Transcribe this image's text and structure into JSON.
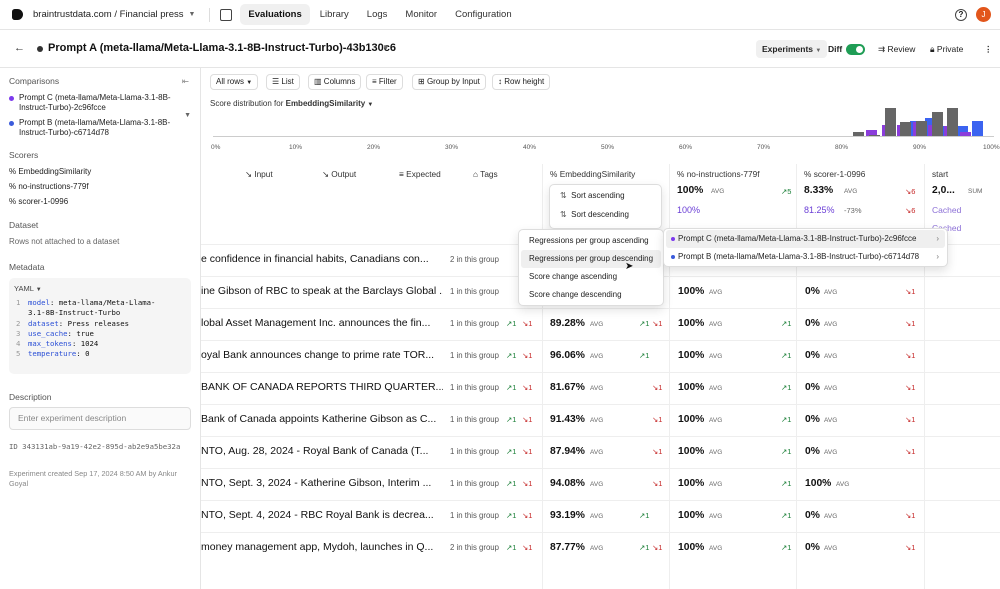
{
  "nav": {
    "org": "braintrustdata.com / Financial press",
    "tabs": [
      "Evaluations",
      "Library",
      "Logs",
      "Monitor",
      "Configuration"
    ],
    "avatar": "J",
    "help": "?"
  },
  "header": {
    "title": "Prompt A (meta-llama/Meta-Llama-3.1-8B-Instruct-Turbo)-43b130c6",
    "experiments": "Experiments",
    "diff": "Diff",
    "review": "Review",
    "private": "Private"
  },
  "sidebar": {
    "comparisons_title": "Comparisons",
    "comparisons": [
      {
        "label": "Prompt C (meta-llama/Meta-Llama-3.1-8B-Instruct-Turbo)-2c96fcce",
        "color": "#7c3aed"
      },
      {
        "label": "Prompt B (meta-llama/Meta-Llama-3.1-8B-Instruct-Turbo)-c6714d78",
        "color": "#3b5bdb"
      }
    ],
    "scorers_title": "Scorers",
    "scorers": [
      "EmbeddingSimilarity",
      "no-instructions-779f",
      "scorer-1-0996"
    ],
    "dataset_title": "Dataset",
    "dataset_text": "Rows not attached to a dataset",
    "metadata_title": "Metadata",
    "yaml_label": "YAML",
    "yaml": [
      {
        "n": "1",
        "k": "model",
        "v": "meta-llama/Meta-Llama-"
      },
      {
        "n": "",
        "k": "",
        "v": "3.1-8B-Instruct-Turbo"
      },
      {
        "n": "2",
        "k": "dataset",
        "v": "Press releases"
      },
      {
        "n": "3",
        "k": "use_cache",
        "v": "true"
      },
      {
        "n": "4",
        "k": "max_tokens",
        "v": "1024"
      },
      {
        "n": "5",
        "k": "temperature",
        "v": "0"
      }
    ],
    "description_title": "Description",
    "description_placeholder": "Enter experiment description",
    "id_text": "ID 343131ab-9a19-42e2-895d-ab2e9a5be32a",
    "created_text": "Experiment created Sep 17, 2024 8:50 AM by Ankur Goyal"
  },
  "toolbar": {
    "all_rows": "All rows",
    "list": "List",
    "columns": "Columns",
    "filter": "Filter",
    "group": "Group by Input",
    "row_height": "Row height"
  },
  "distribution": {
    "label": "Score distribution for",
    "scorer": "EmbeddingSimilarity",
    "ticks": [
      "0%",
      "10%",
      "20%",
      "30%",
      "40%",
      "50%",
      "60%",
      "70%",
      "80%",
      "90%",
      "100%"
    ],
    "bins": [
      {
        "lo": 0.82,
        "g": 0.15,
        "p": 0.2,
        "b": 0
      },
      {
        "lo": 0.84,
        "g": 0.05,
        "p": 0.4,
        "b": 0
      },
      {
        "lo": 0.86,
        "g": 1.0,
        "p": 0.4,
        "b": 0.55
      },
      {
        "lo": 0.88,
        "g": 0.5,
        "p": 0.5,
        "b": 0.65
      },
      {
        "lo": 0.9,
        "g": 0.55,
        "p": 0.4,
        "b": 0.35
      },
      {
        "lo": 0.92,
        "g": 0.85,
        "p": 0.35,
        "b": 0.35
      },
      {
        "lo": 0.94,
        "g": 1.0,
        "p": 0.15,
        "b": 0.55
      }
    ],
    "colors": {
      "g": "#666666",
      "p": "#8b3ddb",
      "b": "#3b63f0"
    }
  },
  "columns": {
    "input": "Input",
    "output": "Output",
    "expected": "Expected",
    "tags": "Tags",
    "embedding": "EmbeddingSimilarity",
    "noinstr": "no-instructions-779f",
    "scorer1": "scorer-1-0996",
    "start": "start"
  },
  "summary": {
    "noinstr": {
      "value": "100%",
      "avg": "AVG",
      "delta": "↗5",
      "c_value": "100%"
    },
    "scorer1": {
      "value": "8.33%",
      "avg": "AVG",
      "delta": "↘6",
      "c_value": "81.25%",
      "c_diff": "-73%",
      "c_delta": "↘6"
    },
    "start": {
      "value": "2,0...",
      "sum": "SUM",
      "cached": "Cached"
    }
  },
  "sort_menu": [
    "Sort ascending",
    "Sort descending"
  ],
  "group_menu": [
    "Regressions per group ascending",
    "Regressions per group descending",
    "Score change ascending",
    "Score change descending"
  ],
  "compare_menu": [
    "Prompt C (meta-llama/Meta-Llama-3.1-8B-Instruct-Turbo)-2c96fcce",
    "Prompt B (meta-llama/Meta-Llama-3.1-8B-Instruct-Turbo)-c6714d78"
  ],
  "rows": [
    {
      "input": "e confidence in financial habits, Canadians con...",
      "group": "2 in this group",
      "gu": "",
      "gd": "",
      "emb": "",
      "eu": "",
      "ed": "",
      "ni": "",
      "niu": "",
      "s1": "",
      "s1d": ""
    },
    {
      "input": "ine Gibson of RBC to speak at the Barclays Global ...",
      "group": "1 in this group",
      "gu": "",
      "gd": "",
      "emb": "",
      "eu": "",
      "ed": "",
      "ni": "100%",
      "niu": "",
      "s1": "0%",
      "s1d": "↘1"
    },
    {
      "input": "lobal Asset Management Inc. announces the fin...",
      "group": "1 in this group",
      "gu": "↗1",
      "gd": "↘1",
      "emb": "89.28%",
      "eu": "↗1",
      "ed": "↘1",
      "ni": "100%",
      "niu": "↗1",
      "s1": "0%",
      "s1d": "↘1"
    },
    {
      "input": "oyal Bank announces change to prime rate TOR...",
      "group": "1 in this group",
      "gu": "↗1",
      "gd": "↘1",
      "emb": "96.06%",
      "eu": "↗1",
      "ed": "",
      "ni": "100%",
      "niu": "↗1",
      "s1": "0%",
      "s1d": "↘1"
    },
    {
      "input": " BANK OF CANADA REPORTS THIRD QUARTER...",
      "group": "1 in this group",
      "gu": "↗1",
      "gd": "↘1",
      "emb": "81.67%",
      "eu": "",
      "ed": "↘1",
      "ni": "100%",
      "niu": "↗1",
      "s1": "0%",
      "s1d": "↘1"
    },
    {
      "input": "Bank of Canada appoints Katherine Gibson as C...",
      "group": "1 in this group",
      "gu": "↗1",
      "gd": "↘1",
      "emb": "91.43%",
      "eu": "",
      "ed": "↘1",
      "ni": "100%",
      "niu": "↗1",
      "s1": "0%",
      "s1d": "↘1"
    },
    {
      "input": "NTO, Aug. 28, 2024 - Royal Bank of Canada (T...",
      "group": "1 in this group",
      "gu": "↗1",
      "gd": "↘1",
      "emb": "87.94%",
      "eu": "",
      "ed": "↘1",
      "ni": "100%",
      "niu": "↗1",
      "s1": "0%",
      "s1d": "↘1"
    },
    {
      "input": "NTO, Sept. 3, 2024 - Katherine Gibson, Interim ...",
      "group": "1 in this group",
      "gu": "↗1",
      "gd": "↘1",
      "emb": "94.08%",
      "eu": "",
      "ed": "↘1",
      "ni": "100%",
      "niu": "↗1",
      "s1": "100%",
      "s1d": ""
    },
    {
      "input": "NTO, Sept. 4, 2024 - RBC Royal Bank is decrea...",
      "group": "1 in this group",
      "gu": "↗1",
      "gd": "↘1",
      "emb": "93.19%",
      "eu": "↗1",
      "ed": "",
      "ni": "100%",
      "niu": "↗1",
      "s1": "0%",
      "s1d": "↘1"
    },
    {
      "input": "money management app, Mydoh, launches in Q...",
      "group": "2 in this group",
      "gu": "↗1",
      "gd": "↘1",
      "emb": "87.77%",
      "eu": "↗1",
      "ed": "↘1",
      "ni": "100%",
      "niu": "↗1",
      "s1": "0%",
      "s1d": "↘1"
    }
  ]
}
